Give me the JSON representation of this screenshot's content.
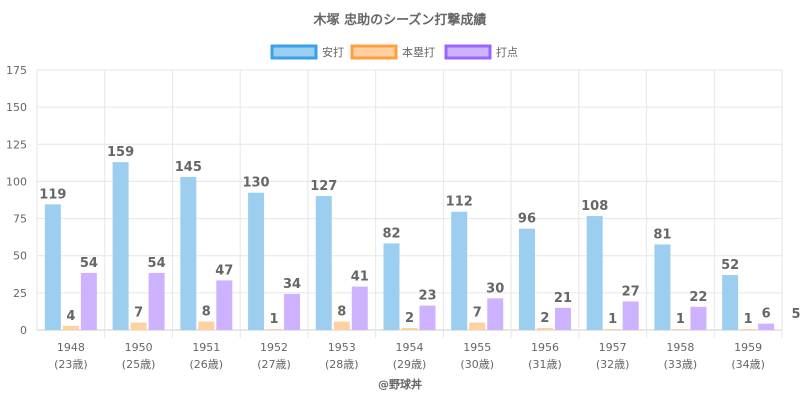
{
  "chart_data": {
    "type": "bar",
    "title": "木塚 忠助のシーズン打撃成績",
    "xlabel": "@野球丼",
    "ylabel": "",
    "ylim": [
      0,
      175
    ],
    "yticks": [
      "0",
      "25",
      "50",
      "75",
      "100",
      "125",
      "150",
      "175"
    ],
    "legend_position": "top",
    "categories": [
      "1948",
      "1950",
      "1951",
      "1952",
      "1953",
      "1954",
      "1955",
      "1956",
      "1957",
      "1958",
      "1959"
    ],
    "subcategories": [
      "(23歳)",
      "(25歳)",
      "(26歳)",
      "(27歳)",
      "(28歳)",
      "(29歳)",
      "(30歳)",
      "(31歳)",
      "(32歳)",
      "(33歳)",
      "(34歳)"
    ],
    "series": [
      {
        "name": "安打",
        "values": [
          84.6,
          113.0,
          103.0,
          92.4,
          90.2,
          58.3,
          79.6,
          68.2,
          76.7,
          57.6,
          37.0
        ],
        "labels": [
          "119",
          "159",
          "145",
          "130",
          "127",
          "82",
          "112",
          "96",
          "108",
          "81",
          "52"
        ],
        "fill": "#9ccfef",
        "stroke": "#36a2eb"
      },
      {
        "name": "本塁打",
        "values": [
          2.8,
          5.0,
          5.7,
          0.7,
          5.7,
          1.4,
          5.0,
          1.4,
          0.7,
          0.7,
          0.7
        ],
        "labels": [
          "4",
          "7",
          "8",
          "1",
          "8",
          "2",
          "7",
          "2",
          "1",
          "1",
          "1"
        ],
        "fill": "#ffd0a0",
        "stroke": "#ff9f40"
      },
      {
        "name": "打点",
        "values": [
          38.4,
          38.4,
          33.4,
          24.2,
          29.2,
          16.4,
          21.3,
          14.9,
          19.2,
          15.6,
          4.3
        ],
        "labels": [
          "54",
          "54",
          "47",
          "34",
          "41",
          "23",
          "30",
          "21",
          "27",
          "22",
          "6"
        ],
        "fill": "#ccb2ff",
        "stroke": "#9966ff"
      }
    ],
    "annotations": [
      "5"
    ]
  }
}
